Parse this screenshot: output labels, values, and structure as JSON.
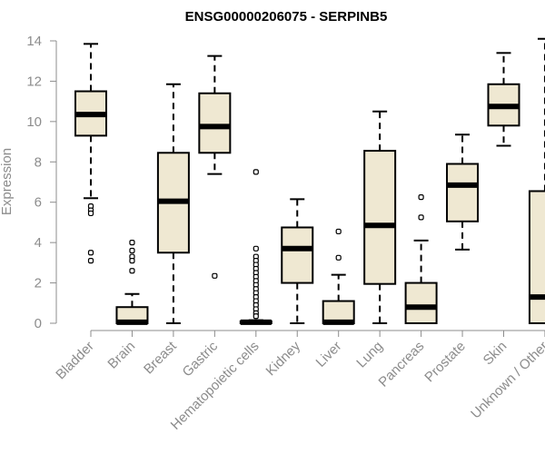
{
  "chart_data": {
    "type": "boxplot",
    "title": "ENSG00000206075 - SERPINB5",
    "xlabel": "",
    "ylabel": "Expression",
    "ylim": [
      0,
      14
    ],
    "yticks": [
      0,
      2,
      4,
      6,
      8,
      10,
      12,
      14
    ],
    "box_color": "#efe8d2",
    "categories": [
      "Bladder",
      "Brain",
      "Breast",
      "Gastric",
      "Hematopoietic cells",
      "Kidney",
      "Liver",
      "Lung",
      "Pancreas",
      "Prostate",
      "Skin",
      "Unknown / Other"
    ],
    "boxes": [
      {
        "whisker_low": 6.2,
        "q1": 9.3,
        "median": 10.35,
        "q3": 11.5,
        "whisker_high": 13.85,
        "outliers": [
          5.8,
          5.6,
          5.45,
          3.5,
          3.1
        ]
      },
      {
        "whisker_low": 0,
        "q1": 0,
        "median": 0.05,
        "q3": 0.8,
        "whisker_high": 1.45,
        "outliers": [
          4.0,
          3.6,
          3.3,
          3.1,
          2.6
        ]
      },
      {
        "whisker_low": 0,
        "q1": 3.5,
        "median": 6.05,
        "q3": 8.45,
        "whisker_high": 11.85,
        "outliers": []
      },
      {
        "whisker_low": 7.4,
        "q1": 8.45,
        "median": 9.75,
        "q3": 11.4,
        "whisker_high": 13.25,
        "outliers": [
          2.35
        ]
      },
      {
        "whisker_low": 0,
        "q1": 0,
        "median": 0.05,
        "q3": 0.1,
        "whisker_high": 0.15,
        "outliers": [
          7.5,
          3.7,
          3.3,
          3.1,
          2.9,
          2.7,
          2.5,
          2.3,
          2.1,
          1.9,
          1.7,
          1.5,
          1.3,
          1.1,
          0.9,
          0.7,
          0.5,
          0.35
        ]
      },
      {
        "whisker_low": 0,
        "q1": 2.0,
        "median": 3.7,
        "q3": 4.75,
        "whisker_high": 6.15,
        "outliers": []
      },
      {
        "whisker_low": 0,
        "q1": 0,
        "median": 0.05,
        "q3": 1.1,
        "whisker_high": 2.4,
        "outliers": [
          4.55,
          3.25
        ]
      },
      {
        "whisker_low": 0,
        "q1": 1.95,
        "median": 4.85,
        "q3": 8.55,
        "whisker_high": 10.5,
        "outliers": []
      },
      {
        "whisker_low": 0,
        "q1": 0,
        "median": 0.8,
        "q3": 2.0,
        "whisker_high": 4.1,
        "outliers": [
          6.25,
          5.25
        ]
      },
      {
        "whisker_low": 3.65,
        "q1": 5.05,
        "median": 6.85,
        "q3": 7.9,
        "whisker_high": 9.35,
        "outliers": []
      },
      {
        "whisker_low": 8.8,
        "q1": 9.8,
        "median": 10.75,
        "q3": 11.85,
        "whisker_high": 13.4,
        "outliers": []
      },
      {
        "whisker_low": 0,
        "q1": 0,
        "median": 1.3,
        "q3": 6.55,
        "whisker_high": 14.1,
        "outliers": []
      }
    ]
  }
}
